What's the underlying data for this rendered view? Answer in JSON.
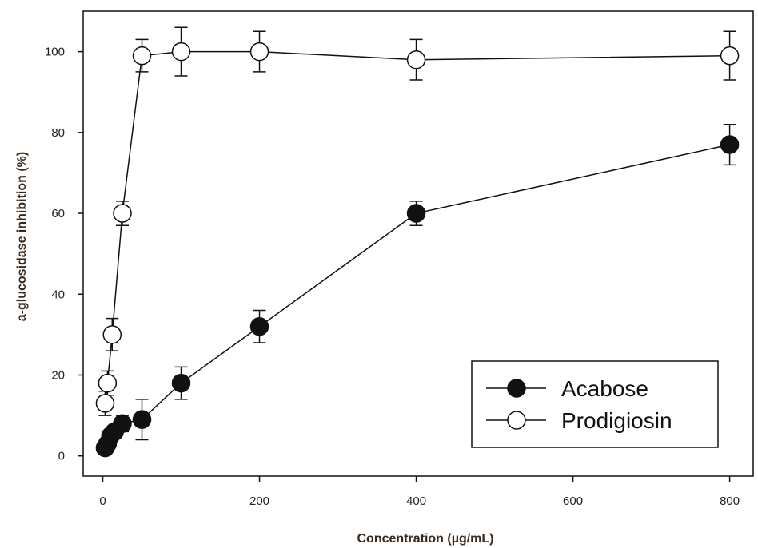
{
  "chart_data": {
    "type": "scatter",
    "xlabel": "Concentration (µg/mL)",
    "ylabel": "a-glucosidase inhibition (%)",
    "xlim": [
      -25,
      830
    ],
    "ylim": [
      -5,
      110
    ],
    "xticks": [
      0,
      200,
      400,
      600,
      800
    ],
    "yticks": [
      0,
      20,
      40,
      60,
      80,
      100
    ],
    "grid": false,
    "legend_position": "bottom-right",
    "series": [
      {
        "name": "Acabose",
        "marker": "filled-circle",
        "color": "#111111",
        "x": [
          3,
          6,
          10,
          15,
          25,
          50,
          100,
          200,
          400,
          800
        ],
        "y": [
          2,
          3,
          5,
          6,
          8,
          9,
          18,
          32,
          60,
          77
        ],
        "err": [
          1,
          1,
          1,
          1.5,
          2,
          5,
          4,
          4,
          3,
          5
        ]
      },
      {
        "name": "Prodigiosin",
        "marker": "open-circle",
        "color": "#111111",
        "x": [
          3,
          6,
          12,
          25,
          50,
          100,
          200,
          400,
          800
        ],
        "y": [
          13,
          18,
          30,
          60,
          99,
          100,
          100,
          98,
          99
        ],
        "err": [
          3,
          3,
          4,
          3,
          4,
          6,
          5,
          5,
          6
        ]
      }
    ]
  }
}
